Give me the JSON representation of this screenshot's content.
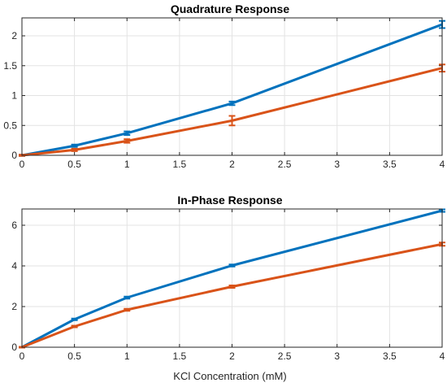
{
  "chart_data": [
    {
      "type": "line",
      "title": "Quadrature Response",
      "xlabel": "",
      "ylabel": "",
      "xlim": [
        0,
        4
      ],
      "ylim": [
        0,
        2.3
      ],
      "x": [
        0,
        0.5,
        1,
        2,
        4
      ],
      "xticks": [
        "0",
        "0.5",
        "1",
        "1.5",
        "2",
        "2.5",
        "3",
        "3.5",
        "4"
      ],
      "yticks": [
        "0",
        "0.5",
        "1",
        "1.5",
        "2"
      ],
      "grid": true,
      "series": [
        {
          "values": [
            0,
            0.16,
            0.37,
            0.87,
            2.19
          ],
          "errors": [
            0.01,
            0.02,
            0.03,
            0.03,
            0.06
          ],
          "color": "#0072BD"
        },
        {
          "values": [
            0,
            0.09,
            0.24,
            0.58,
            1.46
          ],
          "errors": [
            0.01,
            0.02,
            0.03,
            0.08,
            0.06
          ],
          "color": "#D95319"
        }
      ]
    },
    {
      "type": "line",
      "title": "In-Phase Response",
      "xlabel": "KCl Concentration (mM)",
      "ylabel": "",
      "xlim": [
        0,
        4
      ],
      "ylim": [
        0,
        6.8
      ],
      "x": [
        0,
        0.5,
        1,
        2,
        4
      ],
      "xticks": [
        "0",
        "0.5",
        "1",
        "1.5",
        "2",
        "2.5",
        "3",
        "3.5",
        "4"
      ],
      "yticks": [
        "0",
        "2",
        "4",
        "6"
      ],
      "grid": true,
      "series": [
        {
          "values": [
            0,
            1.37,
            2.44,
            4.02,
            6.72
          ],
          "errors": [
            0.02,
            0.04,
            0.05,
            0.05,
            0.06
          ],
          "color": "#0072BD"
        },
        {
          "values": [
            0,
            1.02,
            1.84,
            2.98,
            5.07
          ],
          "errors": [
            0.02,
            0.04,
            0.05,
            0.06,
            0.08
          ],
          "color": "#D95319"
        }
      ]
    }
  ]
}
